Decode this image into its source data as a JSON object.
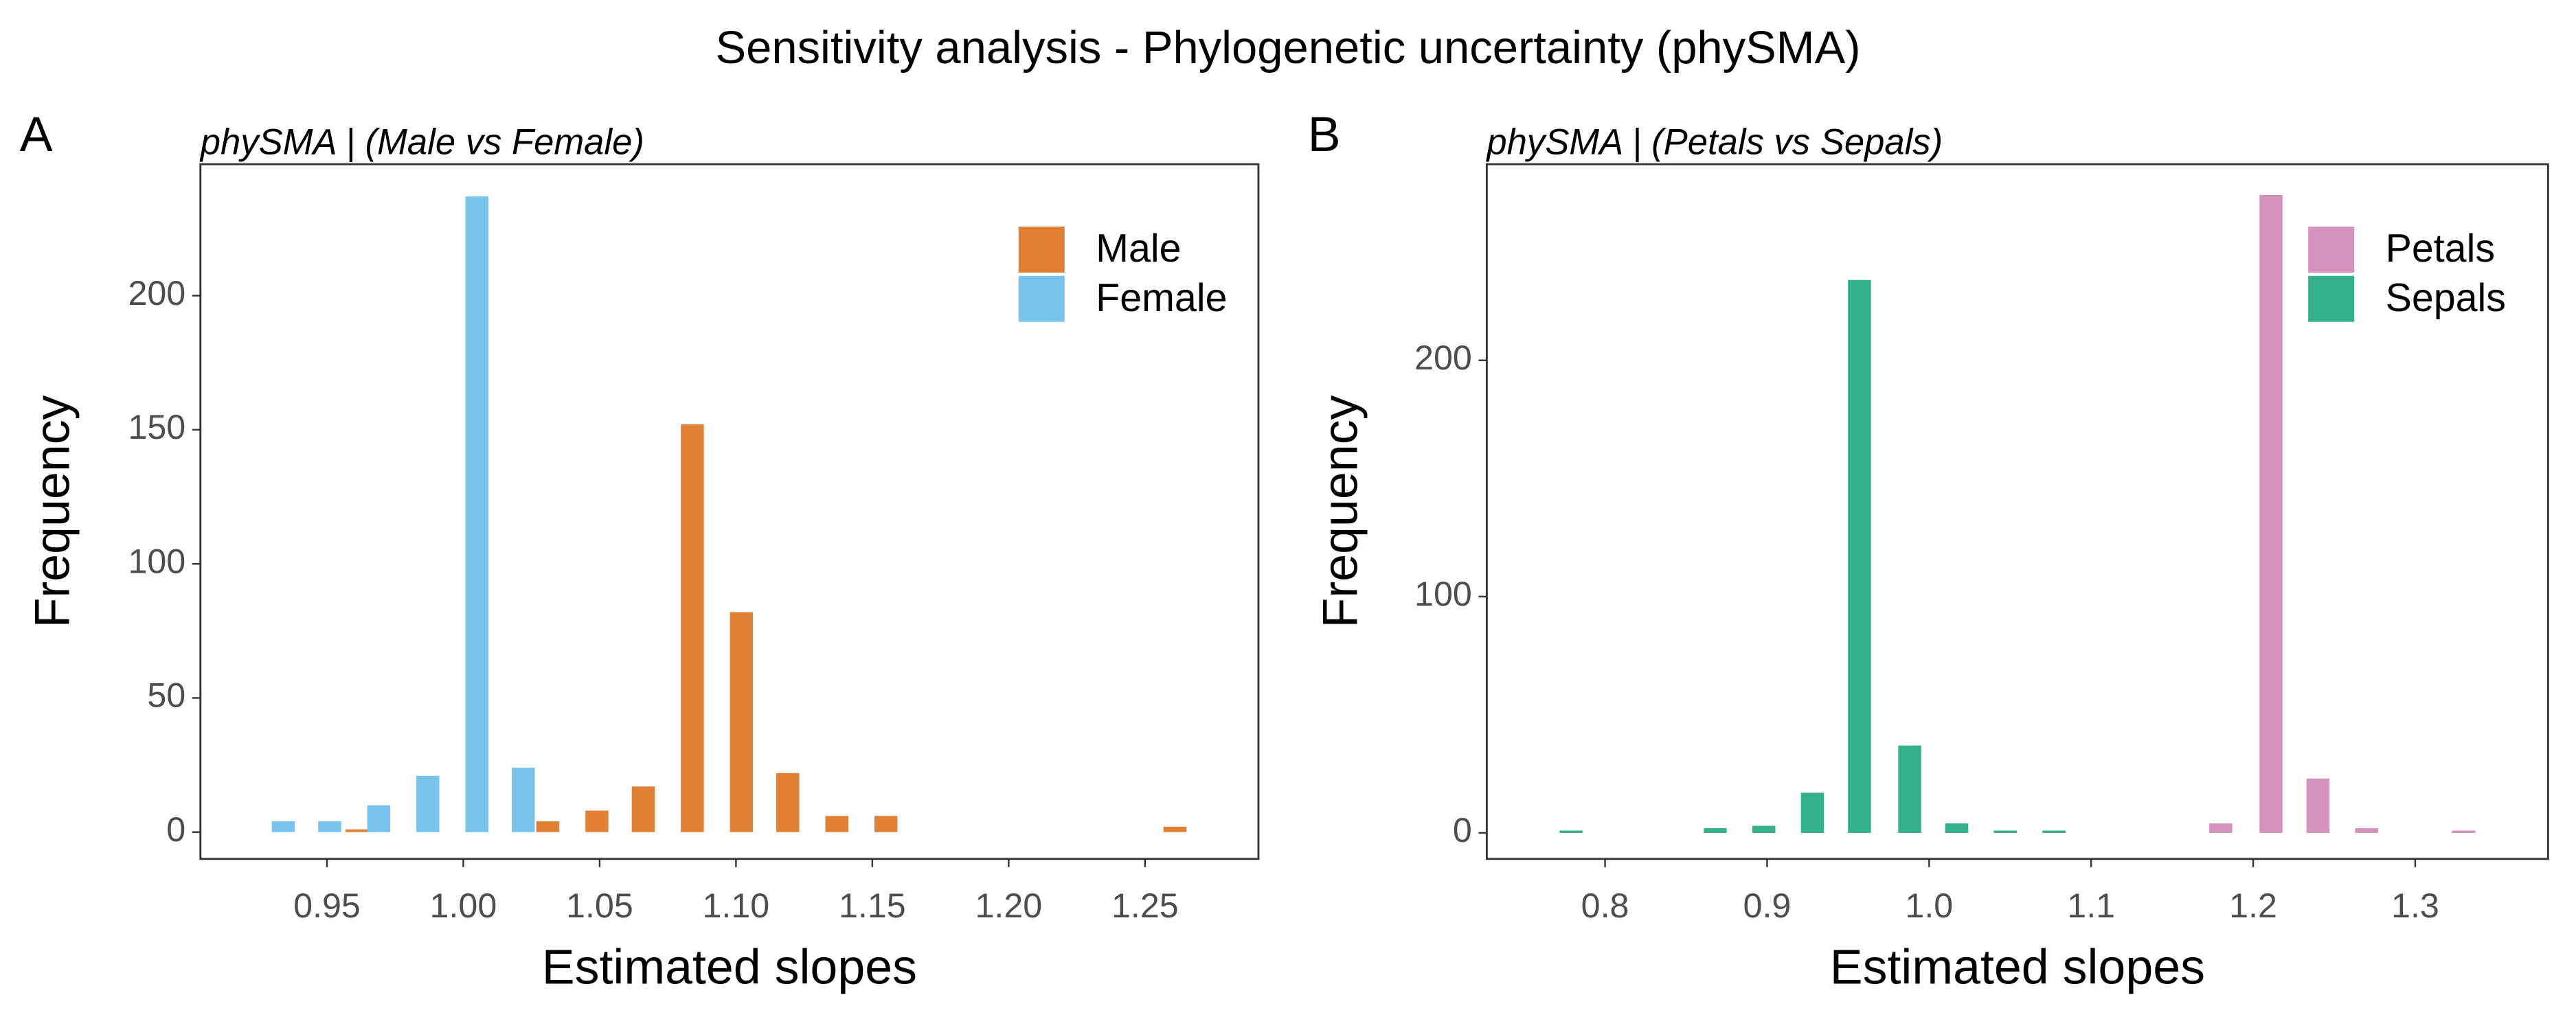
{
  "title": "Sensitivity analysis - Phylogenetic uncertainty (phySMA)",
  "chart_data": [
    {
      "type": "bar",
      "panel_label": "A",
      "subtitle": "phySMA | (Male vs Female)",
      "x_label": "Estimated slopes",
      "y_label": "Frequency",
      "legend": "top-right",
      "series": [
        {
          "name": "Male",
          "color": "#e08035",
          "x": [
            0.961,
            1.031,
            1.049,
            1.066,
            1.084,
            1.102,
            1.119,
            1.137,
            1.155,
            1.261
          ],
          "values": [
            1,
            4,
            8,
            17,
            152,
            82,
            22,
            6,
            6,
            2
          ]
        },
        {
          "name": "Female",
          "color": "#7ac3ec",
          "x": [
            0.934,
            0.951,
            0.969,
            0.987,
            1.005,
            1.022
          ],
          "values": [
            4,
            4,
            10,
            21,
            237,
            24
          ]
        }
      ],
      "xlim": [
        0.9036,
        1.2916
      ],
      "ylim": [
        -10,
        249
      ],
      "xticks": [
        0.95,
        {
          "value": 1,
          "label": "1.00"
        },
        1.05,
        {
          "value": 1.1,
          "label": "1.10"
        },
        1.15,
        {
          "value": 1.2,
          "label": "1.20"
        },
        1.25
      ],
      "yticks": [
        0,
        50,
        100,
        150,
        200
      ]
    },
    {
      "type": "bar",
      "panel_label": "B",
      "subtitle": "phySMA | (Petals vs Sepals)",
      "x_label": "Estimated slopes",
      "y_label": "Frequency",
      "legend": "top-right",
      "series": [
        {
          "name": "Petals",
          "color": "#d592ba",
          "x": [
            1.18,
            1.211,
            1.24,
            1.27,
            1.33
          ],
          "values": [
            4,
            270,
            23,
            2,
            1
          ]
        },
        {
          "name": "Sepals",
          "color": "#35b08c",
          "x": [
            0.779,
            0.868,
            0.898,
            0.928,
            0.957,
            0.988,
            1.017,
            1.047,
            1.077
          ],
          "values": [
            1,
            2,
            3,
            17,
            234,
            37,
            4,
            1,
            1
          ]
        }
      ],
      "xlim": [
        0.727,
        1.382
      ],
      "ylim": [
        -11,
        283
      ],
      "xticks": [
        0.8,
        0.9,
        {
          "value": 1,
          "label": "1.0"
        },
        1.1,
        1.2,
        1.3
      ],
      "yticks": [
        0,
        100,
        200
      ]
    }
  ]
}
